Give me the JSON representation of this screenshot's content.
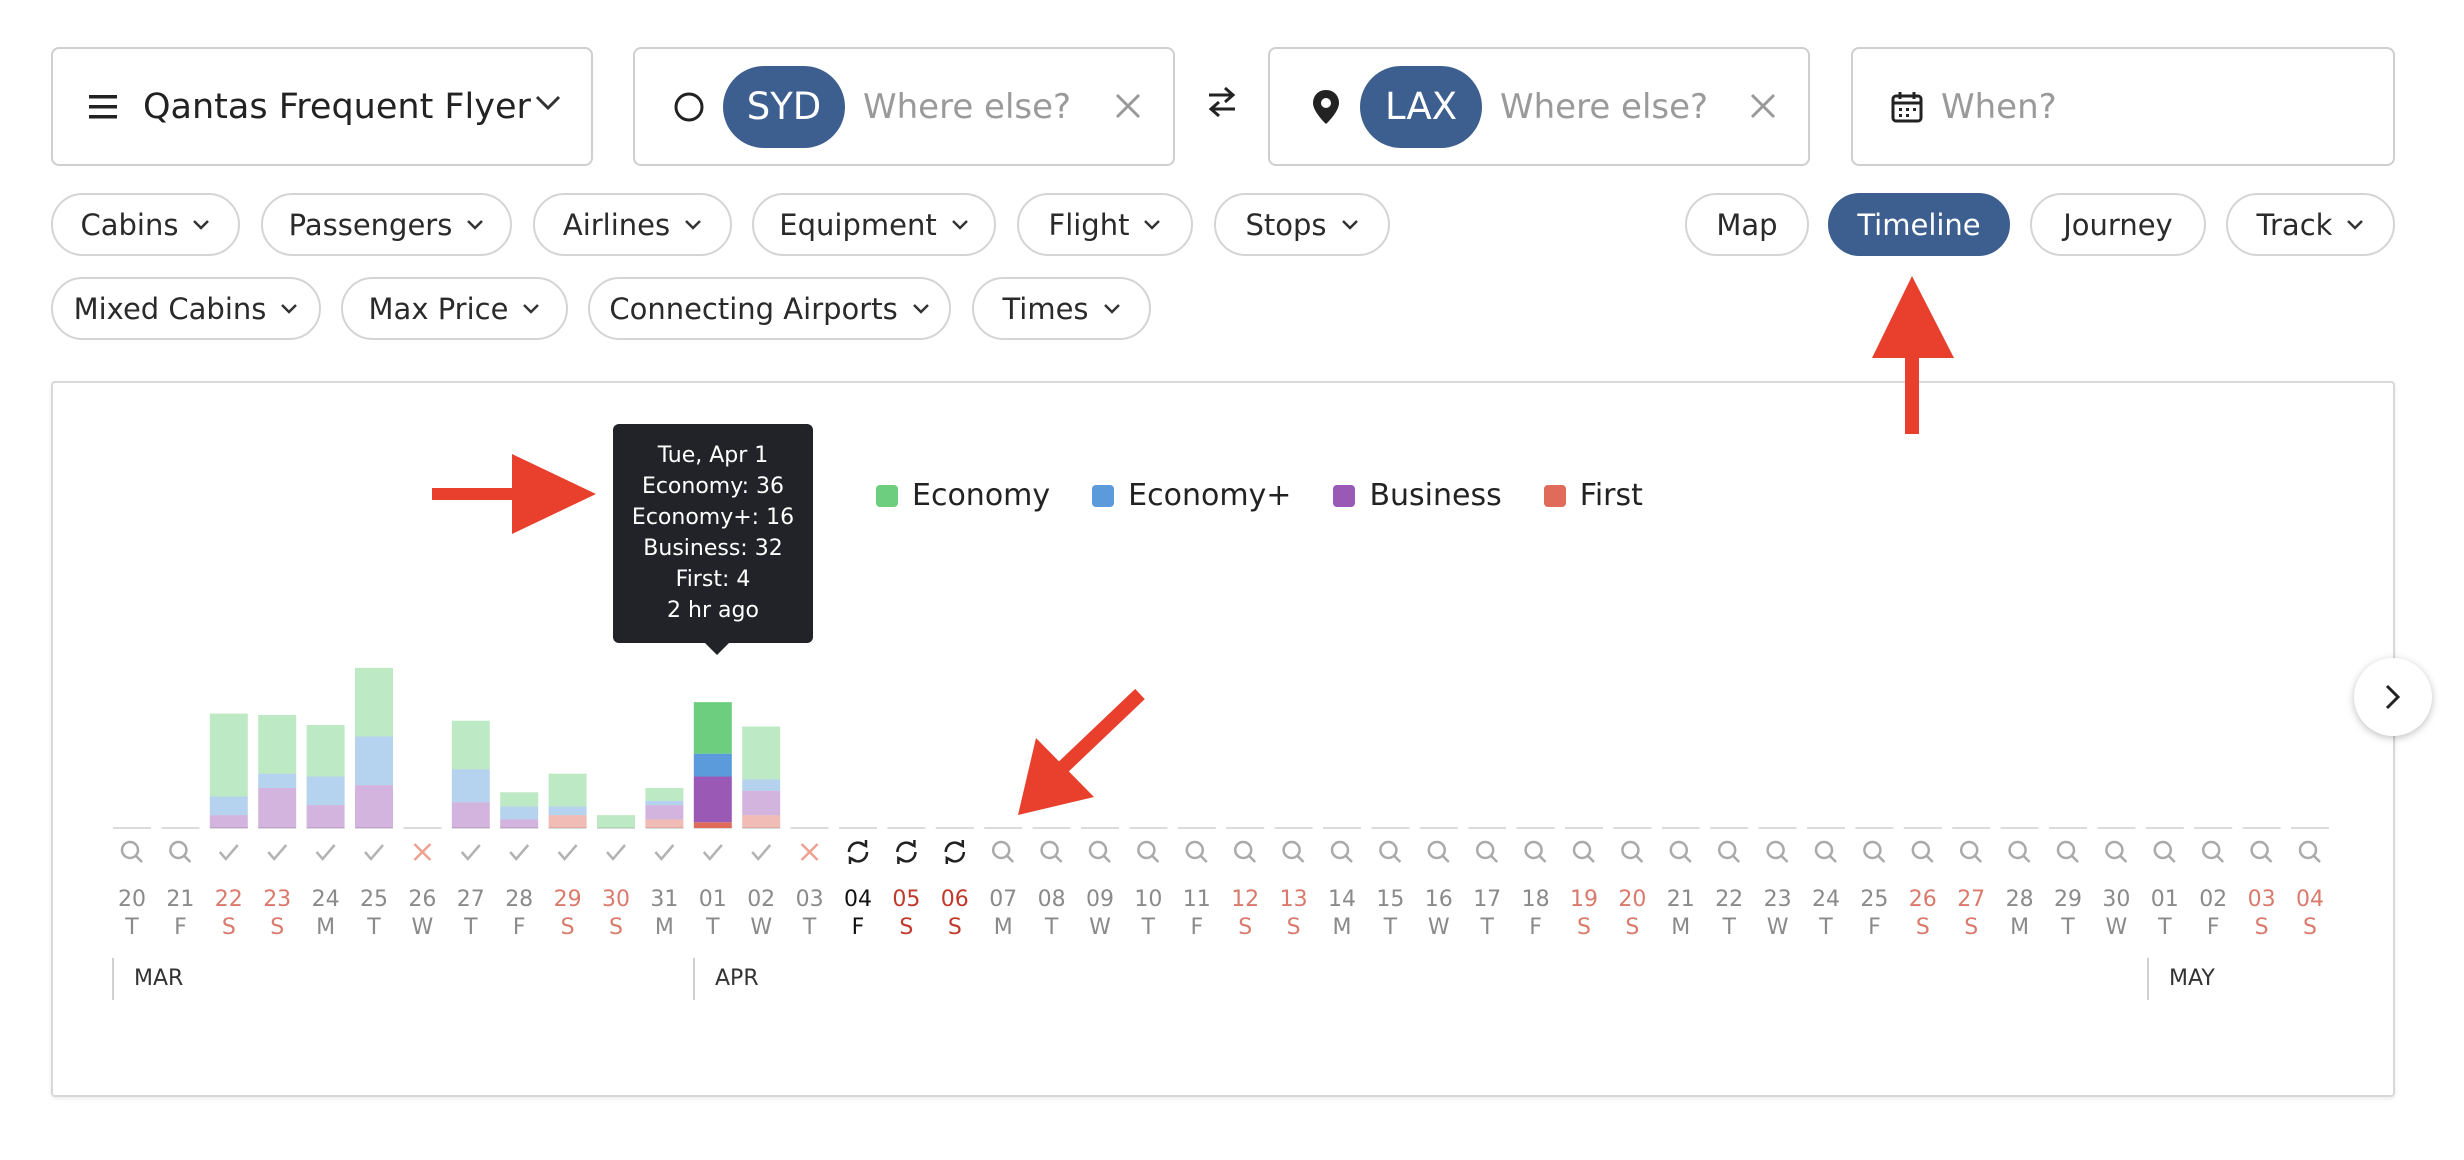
{
  "search": {
    "program": "Qantas Frequent Flyer",
    "origin_code": "SYD",
    "origin_placeholder": "Where else?",
    "dest_code": "LAX",
    "dest_placeholder": "Where else?",
    "when_placeholder": "When?"
  },
  "filters": {
    "row1": [
      "Cabins",
      "Passengers",
      "Airlines",
      "Equipment",
      "Flight",
      "Stops"
    ],
    "row2": [
      "Mixed Cabins",
      "Max Price",
      "Connecting Airports",
      "Times"
    ]
  },
  "views": {
    "map": "Map",
    "timeline": "Timeline",
    "journey": "Journey",
    "track": "Track",
    "active": "Timeline"
  },
  "legend": [
    {
      "label": "Economy",
      "color": "#6cce7e"
    },
    {
      "label": "Economy+",
      "color": "#5b9bdb"
    },
    {
      "label": "Business",
      "color": "#9b59b6"
    },
    {
      "label": "First",
      "color": "#e06b5a"
    }
  ],
  "tooltip": {
    "lines": [
      "Tue, Apr 1",
      "Economy: 36",
      "Economy+: 16",
      "Business: 32",
      "First: 4",
      "2 hr ago"
    ]
  },
  "months": {
    "mar": "MAR",
    "apr": "APR",
    "may": "MAY"
  },
  "chart_data": {
    "type": "bar",
    "stacked": true,
    "series_order": [
      "Business",
      "Economy+",
      "Economy",
      "First"
    ],
    "days": [
      {
        "d": "20",
        "w": "T",
        "weekend": false,
        "status": "search",
        "values": null
      },
      {
        "d": "21",
        "w": "F",
        "weekend": false,
        "status": "search",
        "values": null
      },
      {
        "d": "22",
        "w": "S",
        "weekend": true,
        "status": "check",
        "values": {
          "Business": 9,
          "Economy+": 13,
          "Economy": 58,
          "First": 0
        }
      },
      {
        "d": "23",
        "w": "S",
        "weekend": true,
        "status": "check",
        "values": {
          "Business": 28,
          "Economy+": 10,
          "Economy": 41,
          "First": 0
        }
      },
      {
        "d": "24",
        "w": "M",
        "weekend": false,
        "status": "check",
        "values": {
          "Business": 16,
          "Economy+": 20,
          "Economy": 36,
          "First": 0
        }
      },
      {
        "d": "25",
        "w": "T",
        "weekend": false,
        "status": "check",
        "values": {
          "Business": 30,
          "Economy+": 34,
          "Economy": 48,
          "First": 0
        }
      },
      {
        "d": "26",
        "w": "W",
        "weekend": false,
        "status": "x",
        "values": null
      },
      {
        "d": "27",
        "w": "T",
        "weekend": false,
        "status": "check",
        "values": {
          "Business": 18,
          "Economy+": 23,
          "Economy": 34,
          "First": 0
        }
      },
      {
        "d": "28",
        "w": "F",
        "weekend": false,
        "status": "check",
        "values": {
          "Business": 6,
          "Economy+": 9,
          "Economy": 10,
          "First": 0
        }
      },
      {
        "d": "29",
        "w": "S",
        "weekend": true,
        "status": "check",
        "values": {
          "Business": 0,
          "Economy+": 6,
          "Economy": 23,
          "First": 9
        }
      },
      {
        "d": "30",
        "w": "S",
        "weekend": true,
        "status": "check",
        "values": {
          "Business": 0,
          "Economy+": 0,
          "Economy": 9,
          "First": 0
        }
      },
      {
        "d": "31",
        "w": "M",
        "weekend": false,
        "status": "check",
        "values": {
          "Business": 10,
          "Economy+": 3,
          "Economy": 9,
          "First": 6
        }
      },
      {
        "d": "01",
        "w": "T",
        "weekend": false,
        "status": "check",
        "values": {
          "Business": 32,
          "Economy+": 16,
          "Economy": 36,
          "First": 4
        }
      },
      {
        "d": "02",
        "w": "W",
        "weekend": false,
        "status": "check",
        "values": {
          "Business": 17,
          "Economy+": 8,
          "Economy": 37,
          "First": 9
        }
      },
      {
        "d": "03",
        "w": "T",
        "weekend": false,
        "status": "x",
        "values": null
      },
      {
        "d": "04",
        "w": "F",
        "weekend": false,
        "status": "loading",
        "values": null
      },
      {
        "d": "05",
        "w": "S",
        "weekend": true,
        "status": "loading",
        "values": null
      },
      {
        "d": "06",
        "w": "S",
        "weekend": true,
        "status": "loading",
        "values": null
      },
      {
        "d": "07",
        "w": "M",
        "weekend": false,
        "status": "search",
        "values": null
      },
      {
        "d": "08",
        "w": "T",
        "weekend": false,
        "status": "search",
        "values": null
      },
      {
        "d": "09",
        "w": "W",
        "weekend": false,
        "status": "search",
        "values": null
      },
      {
        "d": "10",
        "w": "T",
        "weekend": false,
        "status": "search",
        "values": null
      },
      {
        "d": "11",
        "w": "F",
        "weekend": false,
        "status": "search",
        "values": null
      },
      {
        "d": "12",
        "w": "S",
        "weekend": true,
        "status": "search",
        "values": null
      },
      {
        "d": "13",
        "w": "S",
        "weekend": true,
        "status": "search",
        "values": null
      },
      {
        "d": "14",
        "w": "M",
        "weekend": false,
        "status": "search",
        "values": null
      },
      {
        "d": "15",
        "w": "T",
        "weekend": false,
        "status": "search",
        "values": null
      },
      {
        "d": "16",
        "w": "W",
        "weekend": false,
        "status": "search",
        "values": null
      },
      {
        "d": "17",
        "w": "T",
        "weekend": false,
        "status": "search",
        "values": null
      },
      {
        "d": "18",
        "w": "F",
        "weekend": false,
        "status": "search",
        "values": null
      },
      {
        "d": "19",
        "w": "S",
        "weekend": true,
        "status": "search",
        "values": null
      },
      {
        "d": "20",
        "w": "S",
        "weekend": true,
        "status": "search",
        "values": null
      },
      {
        "d": "21",
        "w": "M",
        "weekend": false,
        "status": "search",
        "values": null
      },
      {
        "d": "22",
        "w": "T",
        "weekend": false,
        "status": "search",
        "values": null
      },
      {
        "d": "23",
        "w": "W",
        "weekend": false,
        "status": "search",
        "values": null
      },
      {
        "d": "24",
        "w": "T",
        "weekend": false,
        "status": "search",
        "values": null
      },
      {
        "d": "25",
        "w": "F",
        "weekend": false,
        "status": "search",
        "values": null
      },
      {
        "d": "26",
        "w": "S",
        "weekend": true,
        "status": "search",
        "values": null
      },
      {
        "d": "27",
        "w": "S",
        "weekend": true,
        "status": "search",
        "values": null
      },
      {
        "d": "28",
        "w": "M",
        "weekend": false,
        "status": "search",
        "values": null
      },
      {
        "d": "29",
        "w": "T",
        "weekend": false,
        "status": "search",
        "values": null
      },
      {
        "d": "30",
        "w": "W",
        "weekend": false,
        "status": "search",
        "values": null
      },
      {
        "d": "01",
        "w": "T",
        "weekend": false,
        "status": "search",
        "values": null
      },
      {
        "d": "02",
        "w": "F",
        "weekend": false,
        "status": "search",
        "values": null
      },
      {
        "d": "03",
        "w": "S",
        "weekend": true,
        "status": "search",
        "values": null
      },
      {
        "d": "04",
        "w": "S",
        "weekend": true,
        "status": "search",
        "values": null
      }
    ],
    "highlighted_index": 12,
    "bold_indices": [
      15,
      16,
      17
    ]
  },
  "colors": {
    "accent": "#3d5f8f",
    "weekend": "#d0453a",
    "annotation": "#e8402c"
  }
}
